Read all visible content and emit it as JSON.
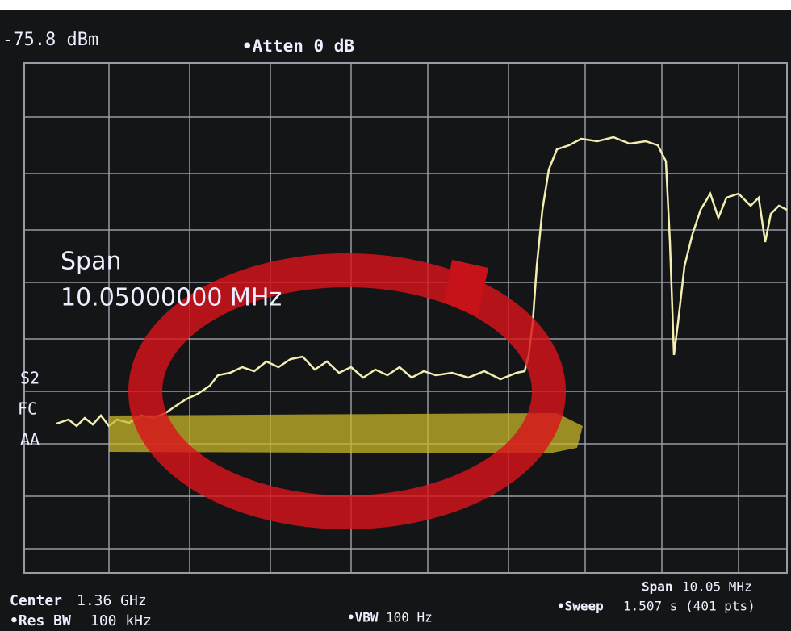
{
  "header": {
    "ref_level": "-75.8 dBm",
    "atten": "•Atten 0 dB"
  },
  "overlay": {
    "span_label": "Span",
    "span_value": "10.05000000 MHz"
  },
  "side_labels": [
    "S2",
    "FC",
    "AA"
  ],
  "footer": {
    "center_label": "Center",
    "center_value": "1.36 GHz",
    "rbw_label": "•Res BW",
    "rbw_value": "100 kHz",
    "vbw_label": "•VBW",
    "vbw_value": "100 Hz",
    "span_label": "Span",
    "span_value": "10.05 MHz",
    "sweep_label": "•Sweep",
    "sweep_value": "1.507 s (401 pts)"
  }
}
